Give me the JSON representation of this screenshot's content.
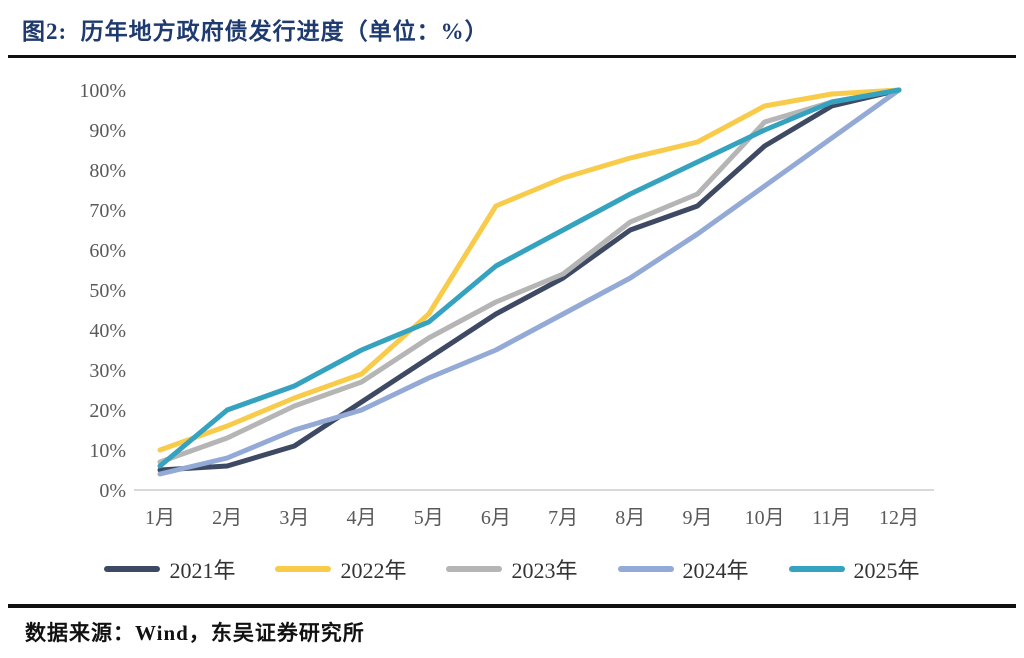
{
  "title": "图2:  历年地方政府债发行进度（单位：%）",
  "source": "数据来源：Wind，东吴证券研究所",
  "colors": {
    "title_blue": "#1e3a6e",
    "axis_text": "#595959",
    "axis_line": "#d9d9d9",
    "divider": "#111111"
  },
  "chart_data": {
    "type": "line",
    "title": "历年地方政府债发行进度（单位：%）",
    "xlabel": "",
    "ylabel": "",
    "ylim": [
      0,
      100
    ],
    "grid": false,
    "legend_position": "bottom",
    "y_ticks": [
      "0%",
      "10%",
      "20%",
      "30%",
      "40%",
      "50%",
      "60%",
      "70%",
      "80%",
      "90%",
      "100%"
    ],
    "categories": [
      "1月",
      "2月",
      "3月",
      "4月",
      "5月",
      "6月",
      "7月",
      "8月",
      "9月",
      "10月",
      "11月",
      "12月"
    ],
    "series": [
      {
        "name": "2021年",
        "color": "#3e4a63",
        "values": [
          5,
          6,
          11,
          22,
          33,
          44,
          53,
          65,
          71,
          86,
          96,
          100
        ]
      },
      {
        "name": "2022年",
        "color": "#f8cb4a",
        "values": [
          10,
          16,
          23,
          29,
          44,
          71,
          78,
          83,
          87,
          96,
          99,
          100
        ]
      },
      {
        "name": "2023年",
        "color": "#b5b5b5",
        "values": [
          7,
          13,
          21,
          27,
          38,
          47,
          54,
          67,
          74,
          92,
          97,
          100
        ]
      },
      {
        "name": "2024年",
        "color": "#93a9d6",
        "values": [
          4,
          8,
          15,
          20,
          28,
          35,
          44,
          53,
          64,
          76,
          88,
          100
        ]
      },
      {
        "name": "2025年",
        "color": "#35a2bf",
        "values": [
          6,
          20,
          26,
          35,
          42,
          56,
          65,
          74,
          82,
          90,
          97,
          100
        ]
      }
    ]
  }
}
